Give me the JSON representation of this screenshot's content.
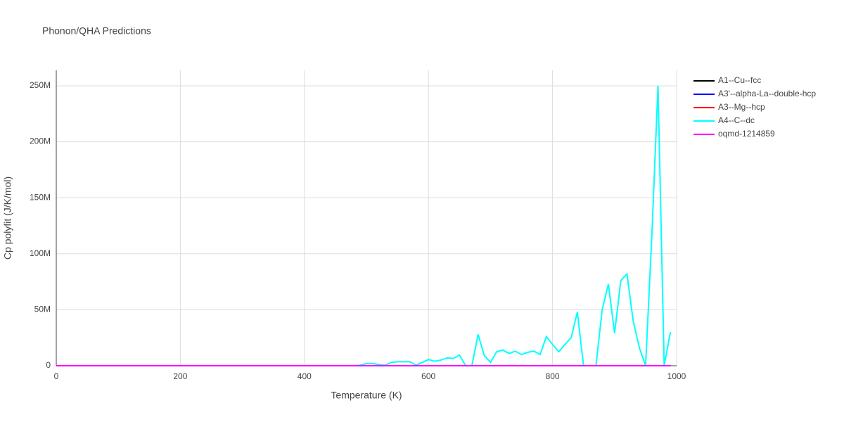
{
  "chart_data": {
    "type": "line",
    "title": "Phonon/QHA Predictions",
    "x_label": "Temperature (K)",
    "y_label": "Cp polyfit (J/K/mol)",
    "x": [
      0,
      10,
      20,
      30,
      40,
      50,
      60,
      70,
      80,
      90,
      100,
      110,
      120,
      130,
      140,
      150,
      160,
      170,
      180,
      190,
      200,
      210,
      220,
      230,
      240,
      250,
      260,
      270,
      280,
      290,
      300,
      310,
      320,
      330,
      340,
      350,
      360,
      370,
      380,
      390,
      400,
      410,
      420,
      430,
      440,
      450,
      460,
      470,
      480,
      490,
      500,
      510,
      520,
      530,
      540,
      550,
      560,
      570,
      580,
      590,
      600,
      610,
      620,
      630,
      640,
      650,
      660,
      670,
      680,
      690,
      700,
      710,
      720,
      730,
      740,
      750,
      760,
      770,
      780,
      790,
      800,
      810,
      820,
      830,
      840,
      850,
      860,
      870,
      880,
      890,
      900,
      910,
      920,
      930,
      940,
      950,
      960,
      970,
      980,
      990
    ],
    "series": [
      {
        "name": "A1--Cu--fcc",
        "color": "#000000",
        "values": [
          0,
          0,
          0,
          0,
          0,
          0,
          0,
          0,
          0,
          0,
          0,
          0,
          0,
          0,
          0,
          0,
          0,
          0,
          0,
          0,
          0,
          0,
          0,
          0,
          0,
          0,
          0,
          0,
          0,
          0,
          0,
          0,
          0,
          0,
          0,
          0,
          0,
          0,
          0,
          0,
          0,
          0,
          0,
          0,
          0,
          0,
          0,
          0,
          0,
          0,
          0,
          0,
          0,
          0,
          0,
          0,
          0,
          0,
          0,
          0,
          0,
          0,
          0,
          0,
          0,
          0,
          0,
          0,
          0,
          0,
          0,
          0,
          0,
          0,
          0,
          0,
          0,
          0,
          0,
          0,
          0,
          0,
          0,
          0,
          0,
          0,
          0,
          0,
          0,
          0,
          0,
          0,
          0,
          0,
          0,
          0,
          0,
          0,
          0,
          0
        ]
      },
      {
        "name": "A3'--alpha-La--double-hcp",
        "color": "#0000ff",
        "values": [
          0,
          0,
          0,
          0,
          0,
          0,
          0,
          0,
          0,
          0,
          0,
          0,
          0,
          0,
          0,
          0,
          0,
          0,
          0,
          0,
          0,
          0,
          0,
          0,
          0,
          0,
          0,
          0,
          0,
          0,
          0,
          0,
          0,
          0,
          0,
          0,
          0,
          0,
          0,
          0,
          0,
          0,
          0,
          0,
          0,
          0,
          0,
          0,
          0,
          0,
          0,
          0,
          0,
          0,
          0,
          0,
          0,
          0,
          0,
          0,
          0,
          0,
          0,
          0,
          0,
          0,
          0,
          0,
          0,
          0,
          0,
          0,
          0,
          0,
          0,
          0,
          0,
          0,
          0,
          0,
          0,
          0,
          0,
          0,
          0,
          0,
          0,
          0,
          0,
          0,
          0,
          0,
          0,
          0,
          0,
          0,
          0,
          0,
          0,
          0
        ]
      },
      {
        "name": "A3--Mg--hcp",
        "color": "#ff0000",
        "values": [
          0,
          0,
          0,
          0,
          0,
          0,
          0,
          0,
          0,
          0,
          0,
          0,
          0,
          0,
          0,
          0,
          0,
          0,
          0,
          0,
          0,
          0,
          0,
          0,
          0,
          0,
          0,
          0,
          0,
          0,
          0,
          0,
          0,
          0,
          0,
          0,
          0,
          0,
          0,
          0,
          0,
          0,
          0,
          0,
          0,
          0,
          0,
          0,
          0,
          0,
          0,
          0,
          0,
          0,
          0,
          0,
          0,
          0,
          0,
          0,
          0,
          0,
          0,
          0,
          0,
          0,
          0,
          0,
          0,
          0,
          0,
          0,
          0,
          0,
          0,
          0,
          0,
          0,
          0,
          0,
          0,
          0,
          0,
          0,
          0,
          0,
          0,
          0,
          0,
          0,
          0,
          0,
          0,
          0,
          0,
          0,
          0,
          0,
          0,
          0
        ]
      },
      {
        "name": "A4--C--dc",
        "color": "#00ffff",
        "values": [
          0,
          0,
          0,
          0,
          0,
          0,
          0,
          0,
          0,
          0,
          0,
          0,
          0,
          0,
          0,
          0,
          0,
          0,
          0,
          0,
          0,
          0,
          0,
          0,
          0,
          0,
          0,
          0,
          0,
          0,
          0,
          0,
          0,
          0,
          0,
          0,
          0,
          0,
          0,
          0,
          0,
          0,
          0,
          0,
          0,
          0,
          0,
          0,
          0,
          500000,
          2000000,
          2000000,
          1000000,
          300000,
          3000000,
          3500000,
          3500000,
          3500000,
          500000,
          3000000,
          5500000,
          4000000,
          5000000,
          7000000,
          6500000,
          9500000,
          0,
          0,
          28000000,
          9000000,
          3000000,
          12500000,
          14000000,
          11000000,
          13000000,
          10000000,
          12000000,
          13000000,
          10000000,
          26000000,
          19000000,
          12500000,
          19000000,
          25000000,
          48000000,
          0,
          0,
          0,
          50000000,
          73000000,
          29000000,
          76000000,
          82000000,
          40000000,
          16000000,
          0,
          115000000,
          250000000,
          0,
          30000000
        ]
      },
      {
        "name": "oqmd-1214859",
        "color": "#ff00ff",
        "values": [
          0,
          0,
          0,
          0,
          0,
          0,
          0,
          0,
          0,
          0,
          0,
          0,
          0,
          0,
          0,
          0,
          0,
          0,
          0,
          0,
          0,
          0,
          0,
          0,
          0,
          0,
          0,
          0,
          0,
          0,
          0,
          0,
          0,
          0,
          0,
          0,
          0,
          0,
          0,
          0,
          0,
          0,
          0,
          0,
          0,
          0,
          0,
          0,
          0,
          0,
          0,
          0,
          0,
          0,
          0,
          0,
          0,
          0,
          0,
          0,
          0,
          0,
          0,
          0,
          0,
          0,
          0,
          0,
          0,
          0,
          0,
          0,
          0,
          0,
          0,
          0,
          0,
          0,
          0,
          0,
          0,
          0,
          0,
          0,
          0,
          0,
          0,
          0,
          0,
          0,
          0,
          0,
          0,
          0,
          0,
          0,
          0,
          0,
          0,
          0
        ]
      }
    ],
    "xlim": [
      0,
      1000
    ],
    "xticks": [
      0,
      200,
      400,
      600,
      800,
      1000
    ],
    "ylim": [
      0,
      263800000
    ],
    "yticks": [
      0,
      {
        "value": 50000000,
        "label": "50M"
      },
      {
        "value": 100000000,
        "label": "100M"
      },
      {
        "value": 150000000,
        "label": "150M"
      },
      {
        "value": 200000000,
        "label": "200M"
      },
      {
        "value": 250000000,
        "label": "250M"
      }
    ],
    "grid": true,
    "legend": "right"
  }
}
